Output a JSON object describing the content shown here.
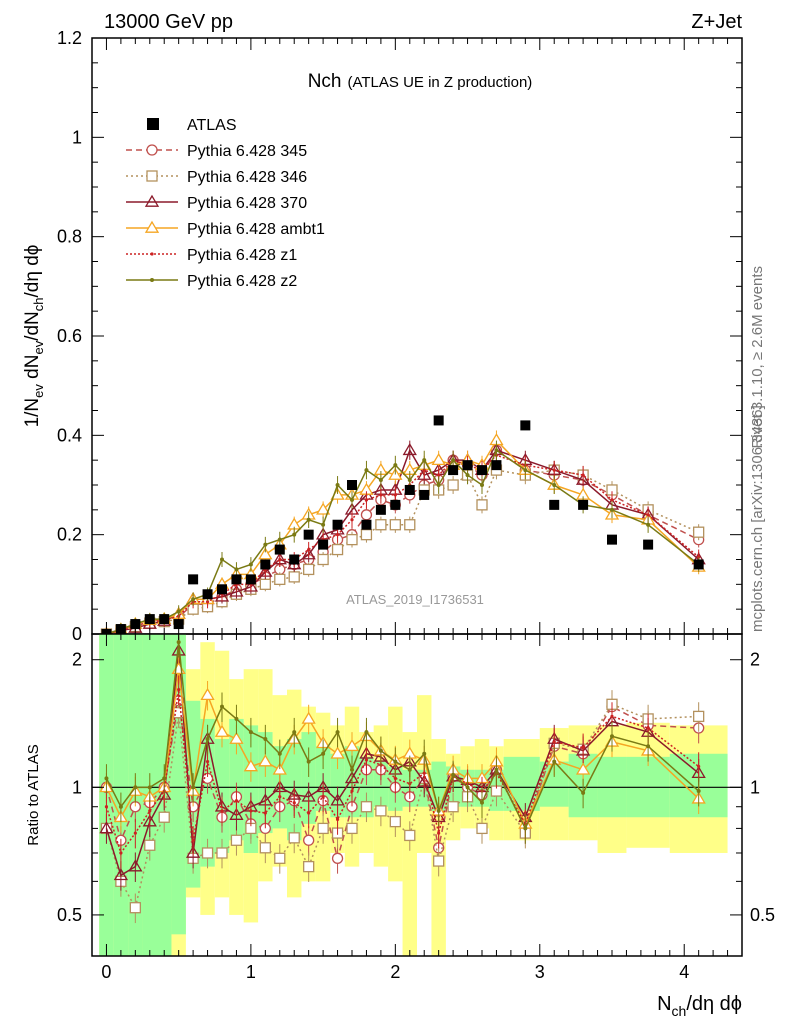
{
  "header": {
    "left": "13000 GeV pp",
    "right": "Z+Jet"
  },
  "chart_data": {
    "type": "line",
    "title": "Nch",
    "subtitle": "(ATLAS UE in Z production)",
    "analysis_label": "ATLAS_2019_I1736531",
    "side_label_top": "Rivet 3.1.10, ≥ 2.6M events",
    "side_label_bottom": "mcplots.cern.ch [arXiv:1306.3436]",
    "xlabel": {
      "main": "N",
      "sub": "ch",
      "rest": "/dη dϕ"
    },
    "ylabel": {
      "parts": [
        {
          "t": "1/N"
        },
        {
          "t": "ev",
          "sub": true
        },
        {
          "t": " dN"
        },
        {
          "t": "ev",
          "sub": true
        },
        {
          "t": "/dN"
        },
        {
          "t": "ch",
          "sub": true
        },
        {
          "t": "/dη dϕ"
        }
      ]
    },
    "ratio_ylabel": "Ratio to ATLAS",
    "xlim": [
      -0.1,
      4.4
    ],
    "ylim": [
      0,
      1.2
    ],
    "ratio_ylim": [
      0.4,
      2.3
    ],
    "xticks": [
      0,
      1,
      2,
      3,
      4
    ],
    "xtick_labels": [
      "0",
      "1",
      "2",
      "3",
      "4"
    ],
    "yticks": [
      0,
      0.2,
      0.4,
      0.6,
      0.8,
      1,
      1.2
    ],
    "ytick_labels": [
      "0",
      "0.2",
      "0.4",
      "0.6",
      "0.8",
      "1",
      "1.2"
    ],
    "ratio_yticks": [
      0.5,
      1,
      2
    ],
    "ratio_ytick_labels": [
      "0.5",
      "1",
      "2"
    ],
    "data": {
      "name": "ATLAS",
      "color": "#000000",
      "x": [
        0.0,
        0.1,
        0.2,
        0.3,
        0.4,
        0.5,
        0.6,
        0.7,
        0.8,
        0.9,
        1.0,
        1.1,
        1.2,
        1.3,
        1.4,
        1.5,
        1.6,
        1.7,
        1.8,
        1.9,
        2.0,
        2.1,
        2.2,
        2.3,
        2.4,
        2.5,
        2.6,
        2.7,
        2.9,
        3.1,
        3.3,
        3.5,
        3.75,
        4.1
      ],
      "y": [
        0.0,
        0.01,
        0.02,
        0.03,
        0.03,
        0.02,
        0.11,
        0.08,
        0.09,
        0.11,
        0.11,
        0.14,
        0.17,
        0.15,
        0.2,
        0.18,
        0.22,
        0.3,
        0.22,
        0.25,
        0.26,
        0.29,
        0.28,
        0.43,
        0.33,
        0.34,
        0.33,
        0.34,
        0.42,
        0.26,
        0.26,
        0.19,
        0.18,
        0.14
      ]
    },
    "band_x": [
      -0.05,
      0.05,
      0.15,
      0.25,
      0.35,
      0.45,
      0.55,
      0.65,
      0.75,
      0.85,
      0.95,
      1.05,
      1.15,
      1.25,
      1.35,
      1.45,
      1.55,
      1.65,
      1.75,
      1.85,
      1.95,
      2.05,
      2.15,
      2.25,
      2.35,
      2.45,
      2.55,
      2.65,
      2.75,
      3.0,
      3.2,
      3.4,
      3.6,
      3.9,
      4.3
    ],
    "band_stat": [
      [
        0.4,
        2.3
      ],
      [
        0.4,
        2.3
      ],
      [
        0.4,
        2.3
      ],
      [
        0.4,
        2.3
      ],
      [
        0.4,
        2.3
      ],
      [
        0.45,
        2.3
      ],
      [
        0.58,
        1.6
      ],
      [
        0.65,
        1.45
      ],
      [
        0.7,
        1.3
      ],
      [
        0.75,
        1.45
      ],
      [
        0.7,
        1.4
      ],
      [
        0.78,
        1.35
      ],
      [
        0.8,
        1.25
      ],
      [
        0.75,
        1.3
      ],
      [
        0.82,
        1.35
      ],
      [
        0.88,
        1.25
      ],
      [
        0.85,
        1.2
      ],
      [
        0.85,
        1.25
      ],
      [
        0.85,
        1.18
      ],
      [
        0.9,
        1.15
      ],
      [
        0.88,
        1.12
      ],
      [
        0.9,
        1.1
      ],
      [
        0.9,
        1.1
      ],
      [
        0.88,
        1.15
      ],
      [
        0.9,
        1.12
      ],
      [
        0.9,
        1.1
      ],
      [
        0.9,
        1.1
      ],
      [
        0.88,
        1.1
      ],
      [
        0.88,
        1.18
      ],
      [
        0.9,
        1.15
      ],
      [
        0.85,
        1.2
      ],
      [
        0.85,
        1.18
      ],
      [
        0.85,
        1.18
      ],
      [
        0.85,
        1.2
      ]
    ],
    "band_total": [
      [
        0.4,
        2.3
      ],
      [
        0.4,
        2.3
      ],
      [
        0.4,
        2.3
      ],
      [
        0.4,
        2.3
      ],
      [
        0.4,
        2.3
      ],
      [
        0.4,
        2.3
      ],
      [
        0.55,
        1.9
      ],
      [
        0.5,
        2.2
      ],
      [
        0.55,
        2.1
      ],
      [
        0.5,
        1.8
      ],
      [
        0.48,
        1.9
      ],
      [
        0.6,
        1.9
      ],
      [
        0.65,
        1.65
      ],
      [
        0.55,
        1.7
      ],
      [
        0.6,
        1.55
      ],
      [
        0.6,
        1.5
      ],
      [
        0.7,
        1.4
      ],
      [
        0.65,
        1.55
      ],
      [
        0.7,
        1.35
      ],
      [
        0.65,
        1.4
      ],
      [
        0.6,
        1.55
      ],
      [
        0.4,
        1.35
      ],
      [
        0.7,
        1.65
      ],
      [
        0.4,
        1.3
      ],
      [
        0.75,
        1.2
      ],
      [
        0.8,
        1.25
      ],
      [
        0.8,
        1.3
      ],
      [
        0.75,
        1.25
      ],
      [
        0.75,
        1.3
      ],
      [
        0.75,
        1.38
      ],
      [
        0.75,
        1.4
      ],
      [
        0.7,
        1.4
      ],
      [
        0.72,
        1.42
      ],
      [
        0.7,
        1.4
      ]
    ],
    "series": [
      {
        "name": "Pythia 6.428 345",
        "color": "#c0504d",
        "dash": "6,4",
        "marker": "circle",
        "x": [
          0.0,
          0.1,
          0.2,
          0.3,
          0.4,
          0.5,
          0.6,
          0.7,
          0.8,
          0.9,
          1.0,
          1.1,
          1.2,
          1.3,
          1.4,
          1.5,
          1.6,
          1.7,
          1.8,
          1.9,
          2.0,
          2.1,
          2.2,
          2.3,
          2.4,
          2.5,
          2.6,
          2.7,
          2.9,
          3.1,
          3.3,
          3.5,
          3.75,
          4.1
        ],
        "y": [
          0.0,
          0.009,
          0.018,
          0.027,
          0.029,
          0.034,
          0.06,
          0.06,
          0.075,
          0.09,
          0.1,
          0.115,
          0.13,
          0.14,
          0.15,
          0.165,
          0.19,
          0.2,
          0.24,
          0.27,
          0.26,
          0.28,
          0.3,
          0.31,
          0.35,
          0.34,
          0.32,
          0.37,
          0.33,
          0.32,
          0.31,
          0.28,
          0.24,
          0.19
        ],
        "r": [
          1.0,
          0.75,
          0.9,
          0.92,
          1.0,
          1.6,
          0.9,
          1.05,
          0.85,
          0.95,
          0.82,
          0.8,
          0.9,
          0.93,
          0.75,
          0.93,
          0.68,
          0.9,
          1.1,
          1.1,
          1.0,
          0.95,
          1.05,
          0.72,
          1.06,
          1.0,
          0.96,
          1.1,
          0.8,
          1.25,
          1.2,
          1.55,
          1.4,
          1.38
        ]
      },
      {
        "name": "Pythia 6.428 346",
        "color": "#b3915d",
        "dash": "2,3",
        "marker": "square",
        "x": [
          0.0,
          0.1,
          0.2,
          0.3,
          0.4,
          0.5,
          0.6,
          0.7,
          0.8,
          0.9,
          1.0,
          1.1,
          1.2,
          1.3,
          1.4,
          1.5,
          1.6,
          1.7,
          1.8,
          1.9,
          2.0,
          2.1,
          2.2,
          2.3,
          2.4,
          2.5,
          2.6,
          2.7,
          2.9,
          3.1,
          3.3,
          3.5,
          3.75,
          4.1
        ],
        "y": [
          0.0,
          0.008,
          0.015,
          0.022,
          0.025,
          0.03,
          0.05,
          0.055,
          0.065,
          0.08,
          0.09,
          0.1,
          0.11,
          0.115,
          0.13,
          0.15,
          0.17,
          0.19,
          0.2,
          0.22,
          0.22,
          0.22,
          0.29,
          0.29,
          0.3,
          0.32,
          0.26,
          0.33,
          0.32,
          0.33,
          0.32,
          0.29,
          0.25,
          0.205
        ],
        "r": [
          0.8,
          0.6,
          0.52,
          0.73,
          0.85,
          1.5,
          0.68,
          0.7,
          0.7,
          0.75,
          0.8,
          0.72,
          0.68,
          0.76,
          0.65,
          0.8,
          0.78,
          0.8,
          0.9,
          0.88,
          0.83,
          0.77,
          1.05,
          0.67,
          0.9,
          0.95,
          0.8,
          0.98,
          0.78,
          1.27,
          1.23,
          1.57,
          1.45,
          1.47
        ]
      },
      {
        "name": "Pythia 6.428 370",
        "color": "#8b1a2b",
        "dash": "",
        "marker": "triangle",
        "x": [
          0.0,
          0.1,
          0.2,
          0.3,
          0.4,
          0.5,
          0.6,
          0.7,
          0.8,
          0.9,
          1.0,
          1.1,
          1.2,
          1.3,
          1.4,
          1.5,
          1.6,
          1.7,
          1.8,
          1.9,
          2.0,
          2.1,
          2.2,
          2.3,
          2.4,
          2.5,
          2.6,
          2.7,
          2.9,
          3.1,
          3.3,
          3.5,
          3.75,
          4.1
        ],
        "y": [
          0.0,
          0.007,
          0.012,
          0.02,
          0.026,
          0.04,
          0.07,
          0.07,
          0.075,
          0.085,
          0.095,
          0.125,
          0.15,
          0.14,
          0.16,
          0.2,
          0.21,
          0.25,
          0.28,
          0.29,
          0.29,
          0.37,
          0.32,
          0.33,
          0.35,
          0.35,
          0.33,
          0.37,
          0.35,
          0.33,
          0.31,
          0.26,
          0.24,
          0.15
        ],
        "r": [
          0.8,
          0.62,
          0.65,
          0.83,
          0.96,
          2.1,
          0.7,
          1.3,
          0.9,
          0.86,
          0.9,
          0.93,
          1.0,
          0.96,
          0.95,
          1.0,
          0.93,
          1.05,
          1.2,
          1.18,
          1.1,
          1.15,
          1.03,
          0.85,
          1.06,
          1.04,
          1.0,
          1.1,
          0.85,
          1.3,
          1.22,
          1.43,
          1.35,
          1.08
        ]
      },
      {
        "name": "Pythia 6.428 ambt1",
        "color": "#f5a623",
        "dash": "",
        "marker": "triangle-open",
        "x": [
          0.0,
          0.1,
          0.2,
          0.3,
          0.4,
          0.5,
          0.6,
          0.7,
          0.8,
          0.9,
          1.0,
          1.1,
          1.2,
          1.3,
          1.4,
          1.5,
          1.6,
          1.7,
          1.8,
          1.9,
          2.0,
          2.1,
          2.2,
          2.3,
          2.4,
          2.5,
          2.6,
          2.7,
          2.9,
          3.1,
          3.3,
          3.5,
          3.75,
          4.1
        ],
        "y": [
          0.0,
          0.009,
          0.02,
          0.028,
          0.03,
          0.04,
          0.07,
          0.07,
          0.1,
          0.12,
          0.12,
          0.16,
          0.18,
          0.22,
          0.24,
          0.25,
          0.28,
          0.28,
          0.29,
          0.33,
          0.32,
          0.33,
          0.34,
          0.35,
          0.34,
          0.35,
          0.34,
          0.39,
          0.33,
          0.3,
          0.28,
          0.24,
          0.23,
          0.135
        ],
        "r": [
          1.0,
          0.85,
          0.98,
          0.95,
          1.0,
          1.9,
          0.98,
          1.65,
          1.35,
          1.3,
          1.12,
          1.15,
          1.1,
          1.3,
          1.45,
          1.27,
          1.2,
          1.25,
          1.32,
          1.22,
          1.16,
          1.2,
          1.16,
          0.88,
          1.1,
          1.05,
          1.05,
          1.15,
          0.82,
          1.16,
          1.1,
          1.28,
          1.22,
          0.94
        ]
      },
      {
        "name": "Pythia 6.428 z1",
        "color": "#cc2222",
        "dash": "2,2",
        "marker": "dot",
        "x": [
          0.0,
          0.1,
          0.2,
          0.3,
          0.4,
          0.5,
          0.6,
          0.7,
          0.8,
          0.9,
          1.0,
          1.1,
          1.2,
          1.3,
          1.4,
          1.5,
          1.6,
          1.7,
          1.8,
          1.9,
          2.0,
          2.1,
          2.2,
          2.3,
          2.4,
          2.5,
          2.6,
          2.7,
          2.9,
          3.1,
          3.3,
          3.5,
          3.75,
          4.1
        ],
        "y": [
          0.0,
          0.008,
          0.017,
          0.024,
          0.028,
          0.036,
          0.065,
          0.065,
          0.08,
          0.1,
          0.1,
          0.13,
          0.15,
          0.15,
          0.17,
          0.19,
          0.2,
          0.23,
          0.27,
          0.28,
          0.28,
          0.3,
          0.33,
          0.32,
          0.35,
          0.34,
          0.33,
          0.36,
          0.34,
          0.33,
          0.32,
          0.27,
          0.24,
          0.155
        ],
        "r": [
          0.9,
          0.7,
          0.78,
          0.88,
          0.98,
          1.7,
          0.75,
          1.15,
          0.88,
          0.93,
          0.88,
          0.87,
          0.95,
          0.92,
          0.87,
          0.95,
          0.84,
          0.98,
          1.16,
          1.13,
          1.05,
          1.02,
          1.08,
          0.78,
          1.06,
          1.02,
          0.98,
          1.08,
          0.82,
          1.28,
          1.24,
          1.47,
          1.38,
          1.12
        ]
      },
      {
        "name": "Pythia 6.428 z2",
        "color": "#7a7a14",
        "dash": "",
        "marker": "small",
        "x": [
          0.0,
          0.1,
          0.2,
          0.3,
          0.4,
          0.5,
          0.6,
          0.7,
          0.8,
          0.9,
          1.0,
          1.1,
          1.2,
          1.3,
          1.4,
          1.5,
          1.6,
          1.7,
          1.8,
          1.9,
          2.0,
          2.1,
          2.2,
          2.3,
          2.4,
          2.5,
          2.6,
          2.7,
          2.9,
          3.1,
          3.3,
          3.5,
          3.75,
          4.1
        ],
        "y": [
          0.0,
          0.01,
          0.02,
          0.03,
          0.03,
          0.045,
          0.07,
          0.08,
          0.15,
          0.13,
          0.14,
          0.18,
          0.19,
          0.2,
          0.23,
          0.22,
          0.3,
          0.27,
          0.33,
          0.31,
          0.34,
          0.31,
          0.35,
          0.3,
          0.35,
          0.32,
          0.3,
          0.37,
          0.33,
          0.3,
          0.26,
          0.25,
          0.22,
          0.14
        ],
        "r": [
          1.05,
          0.9,
          1.0,
          1.0,
          1.05,
          2.2,
          1.0,
          1.3,
          1.55,
          1.45,
          1.35,
          1.3,
          1.2,
          1.35,
          1.15,
          1.2,
          1.35,
          1.1,
          1.35,
          1.22,
          1.15,
          1.1,
          1.2,
          0.88,
          1.07,
          1.0,
          0.92,
          1.1,
          0.8,
          1.15,
          0.97,
          1.32,
          1.25,
          0.98
        ]
      }
    ]
  }
}
